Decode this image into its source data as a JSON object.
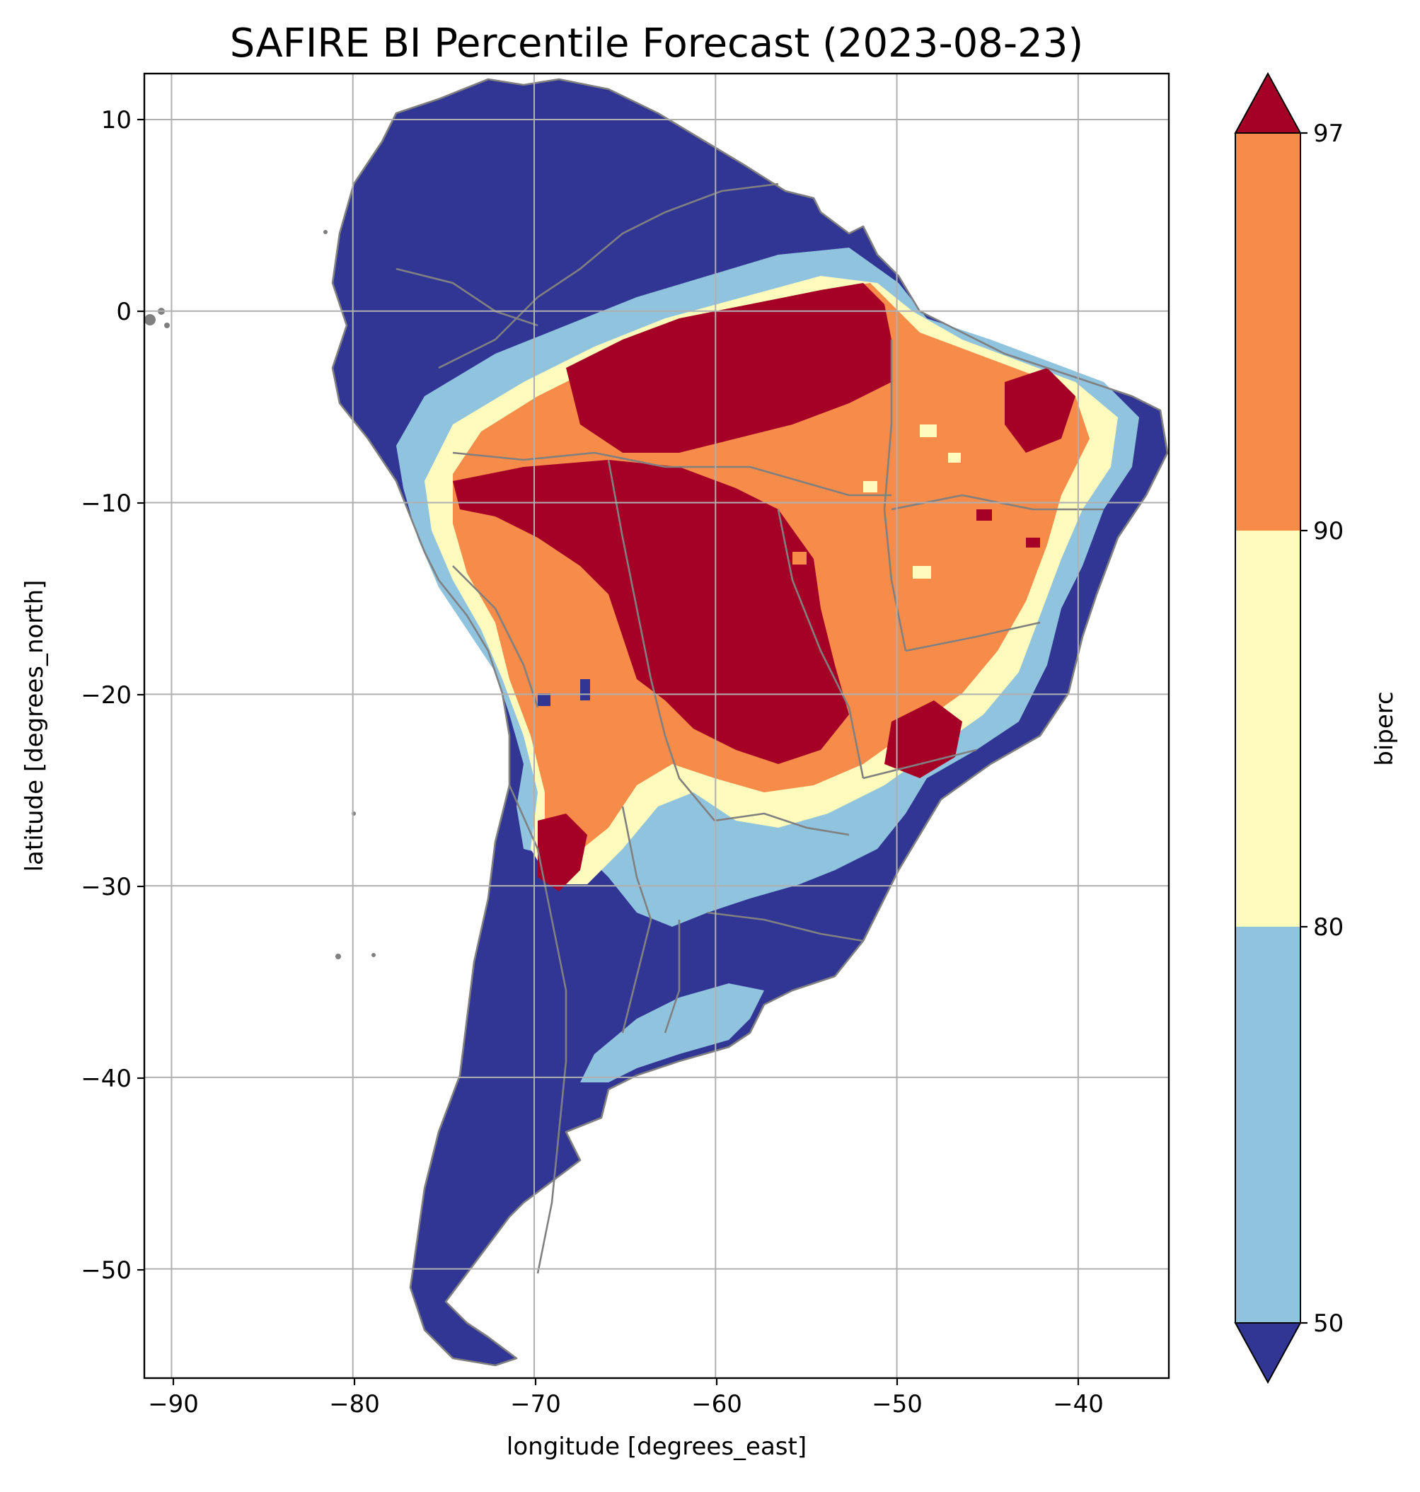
{
  "title": "SAFIRE BI Percentile Forecast (2023-08-23)",
  "axes": {
    "xlabel": "longitude [degrees_east]",
    "ylabel": "latitude [degrees_north]",
    "x_ticks": [
      "−90",
      "−80",
      "−70",
      "−60",
      "−50",
      "−40"
    ],
    "y_ticks": [
      "10",
      "0",
      "−10",
      "−20",
      "−30",
      "−40",
      "−50"
    ],
    "xlim": [
      -91.5,
      -35
    ],
    "ylim": [
      -55.7,
      12.4
    ],
    "grid": true
  },
  "colorbar": {
    "label": "biperc",
    "ticks": [
      "97",
      "90",
      "80",
      "50"
    ],
    "extend": "both",
    "bins": [
      {
        "range": "< 50",
        "color": "#313695"
      },
      {
        "range": "50 – 80",
        "color": "#8fc3de"
      },
      {
        "range": "80 – 90",
        "color": "#fefbbd"
      },
      {
        "range": "90 – 97",
        "color": "#f78c4a"
      },
      {
        "range": "> 97",
        "color": "#a50026"
      }
    ]
  },
  "chart_data": {
    "type": "heatmap",
    "variable": "biperc",
    "colors": {
      "low": "#313695",
      "mid_low": "#8fc3de",
      "mid": "#fefbbd",
      "high": "#f78c4a",
      "extreme": "#a50026",
      "borders": "#808080"
    }
  }
}
